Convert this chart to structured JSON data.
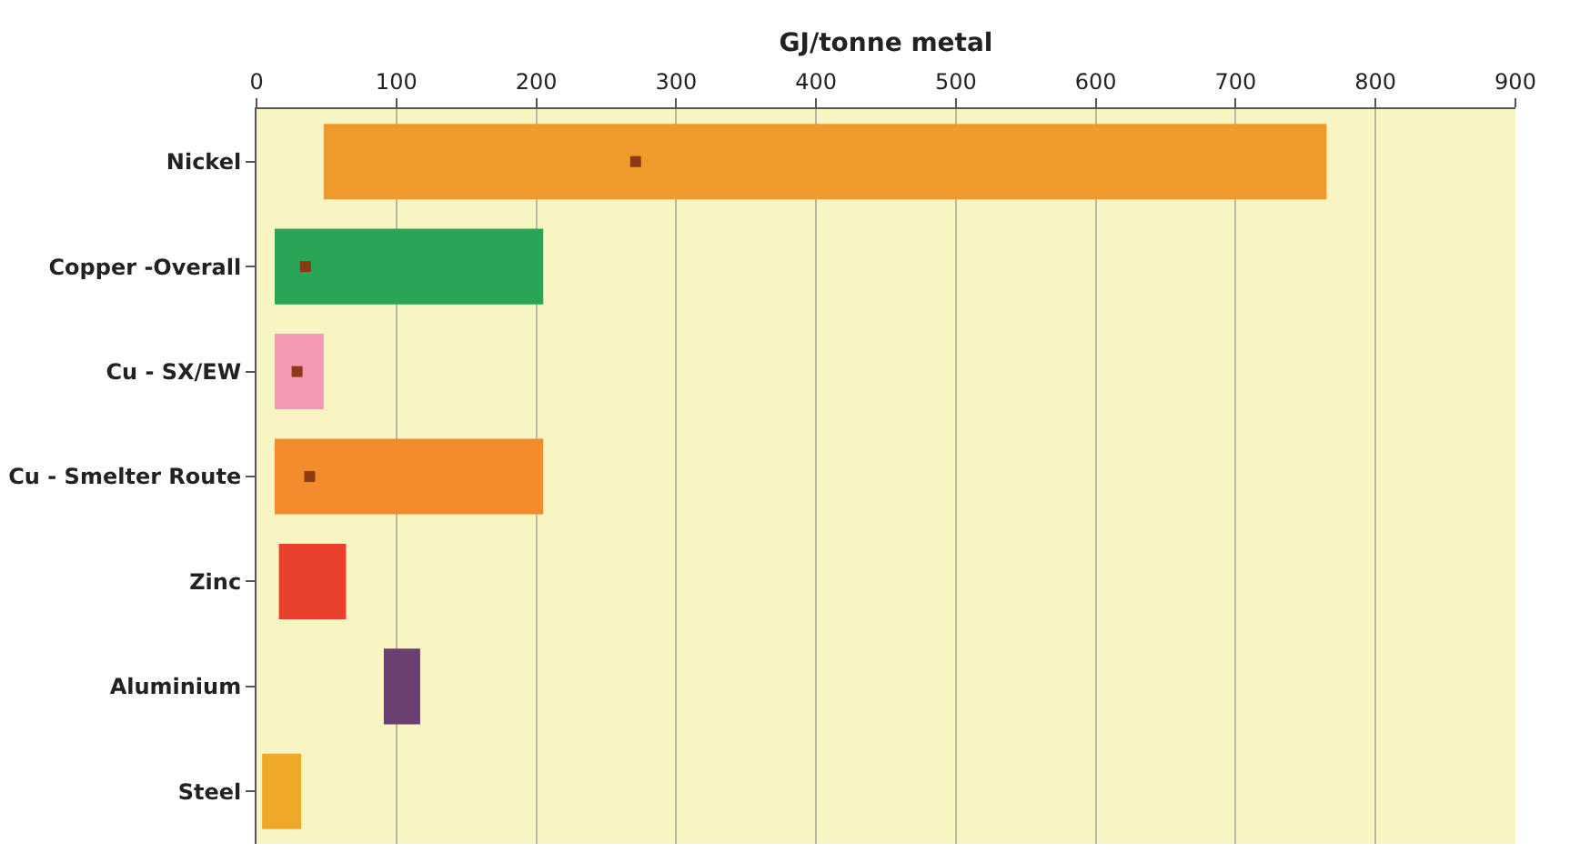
{
  "chart_data": {
    "type": "bar",
    "orientation": "horizontal",
    "xlabel": "GJ/tonne metal",
    "categories": [
      "Nickel",
      "Copper -Overall",
      "Cu - SX/EW",
      "Cu - Smelter Route",
      "Zinc",
      "Aluminium",
      "Steel"
    ],
    "series": [
      {
        "base": [
          48,
          13,
          13,
          13,
          16,
          91,
          4
        ],
        "values": [
          717,
          192,
          35,
          192,
          48,
          26,
          28
        ],
        "colors": [
          "#f19a2c",
          "#2aa558",
          "#f49ab4",
          "#f08c2c",
          "#e8402a",
          "#6a4070",
          "#f0a828"
        ]
      },
      {
        "type": "scatter",
        "marker": "square",
        "color": "#8b3a14",
        "values": [
          271,
          35,
          29,
          38,
          null,
          null,
          null
        ]
      }
    ],
    "xlim": [
      0,
      900
    ],
    "xticks": [
      0,
      100,
      200,
      300,
      400,
      500,
      600,
      700,
      800,
      900
    ],
    "grid": "x"
  }
}
